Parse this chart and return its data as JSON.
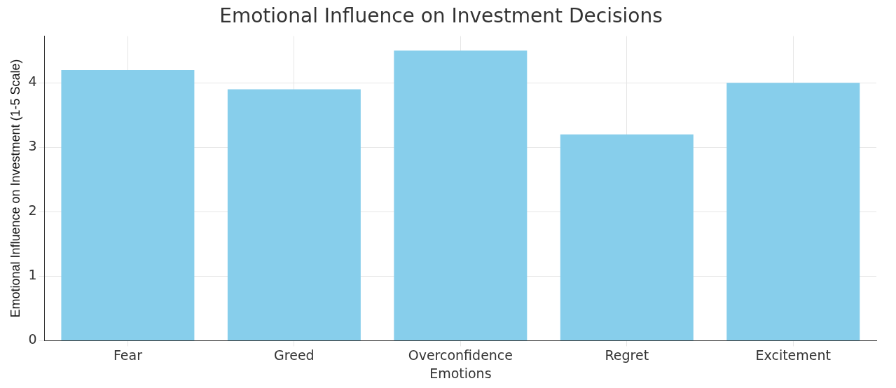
{
  "chart_data": {
    "type": "bar",
    "title": "Emotional Influence on Investment Decisions",
    "xlabel": "Emotions",
    "ylabel": "Emotional Influence on Investment (1-5 Scale)",
    "categories": [
      "Fear",
      "Greed",
      "Overconfidence",
      "Regret",
      "Excitement"
    ],
    "values": [
      4.2,
      3.9,
      4.5,
      3.2,
      4.0
    ],
    "color": "#87ceeb",
    "ylim": [
      0,
      4.725
    ],
    "yticks": [
      0,
      1,
      2,
      3,
      4
    ],
    "grid": true
  }
}
